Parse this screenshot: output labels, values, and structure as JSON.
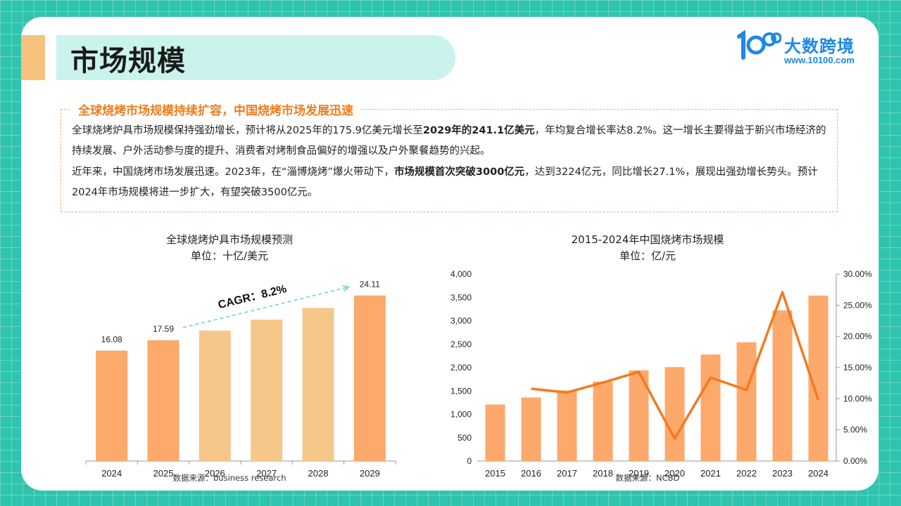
{
  "header": {
    "title": "市场规模"
  },
  "logo": {
    "name": "大数跨境",
    "url": "www.10100.com"
  },
  "summary": {
    "heading": "全球烧烤市场规模持续扩容，中国烧烤市场发展迅速",
    "p1_a": "全球烧烤炉具市场规模保持强劲增长，预计将从2025年的175.9亿美元增长至",
    "p1_bold": "2029年的241.1亿美元",
    "p1_b": "，年均复合增长率达8.2%。这一增长主要得益于新兴市场经济的持续发展、户外活动参与度的提升、消费者对烤制食品偏好的增强以及户外聚餐趋势的兴起。",
    "p2_a": "近年来，中国烧烤市场发展迅速。2023年，在“淄博烧烤”爆火带动下，",
    "p2_bold": "市场规模首次突破3000亿元",
    "p2_b": "，达到3224亿元，同比增长27.1%，展现出强劲增长势头。预计2024年市场规模将进一步扩大，有望突破3500亿元。"
  },
  "chart_data": [
    {
      "type": "bar",
      "title": "全球烧烤炉具市场规模预测",
      "subtitle": "单位：十亿/美元",
      "categories": [
        "2024",
        "2025",
        "2026",
        "2027",
        "2028",
        "2029"
      ],
      "values": [
        16.08,
        17.59,
        19.0,
        20.6,
        22.3,
        24.11
      ],
      "data_labels": [
        "16.08",
        "17.59",
        "",
        "",
        "",
        "24.11"
      ],
      "colors": [
        "#fca96b",
        "#fca96b",
        "#f5c88a",
        "#f5c88a",
        "#f5c88a",
        "#fca96b"
      ],
      "annotation": "CAGR：8.2%",
      "ylim": [
        0,
        26
      ],
      "source": "数据来源：business research"
    },
    {
      "type": "bar+line",
      "title": "2015-2024年中国烧烤市场规模",
      "subtitle": "单位：亿/元",
      "categories": [
        "2015",
        "2016",
        "2017",
        "2018",
        "2019",
        "2020",
        "2021",
        "2022",
        "2023",
        "2024"
      ],
      "series": [
        {
          "type": "bar",
          "axis": "left",
          "color": "#fca96b",
          "values": [
            1210,
            1360,
            1510,
            1700,
            1940,
            2010,
            2280,
            2540,
            3224,
            3540
          ]
        },
        {
          "type": "line",
          "axis": "right",
          "color": "#f47a20",
          "values": [
            null,
            11.6,
            11.0,
            12.6,
            14.3,
            3.6,
            13.4,
            11.4,
            27.1,
            9.8
          ]
        }
      ],
      "y_left": {
        "ticks": [
          "0",
          "500",
          "1,000",
          "1,500",
          "2,000",
          "2,500",
          "3,000",
          "3,500",
          "4,000"
        ],
        "ylim": [
          0,
          4000
        ]
      },
      "y_right": {
        "ticks": [
          "0.00%",
          "5.00%",
          "10.00%",
          "15.00%",
          "20.00%",
          "25.00%",
          "30.00%"
        ],
        "ylim": [
          0,
          30
        ]
      },
      "source": "数据来源：NCBD"
    }
  ]
}
